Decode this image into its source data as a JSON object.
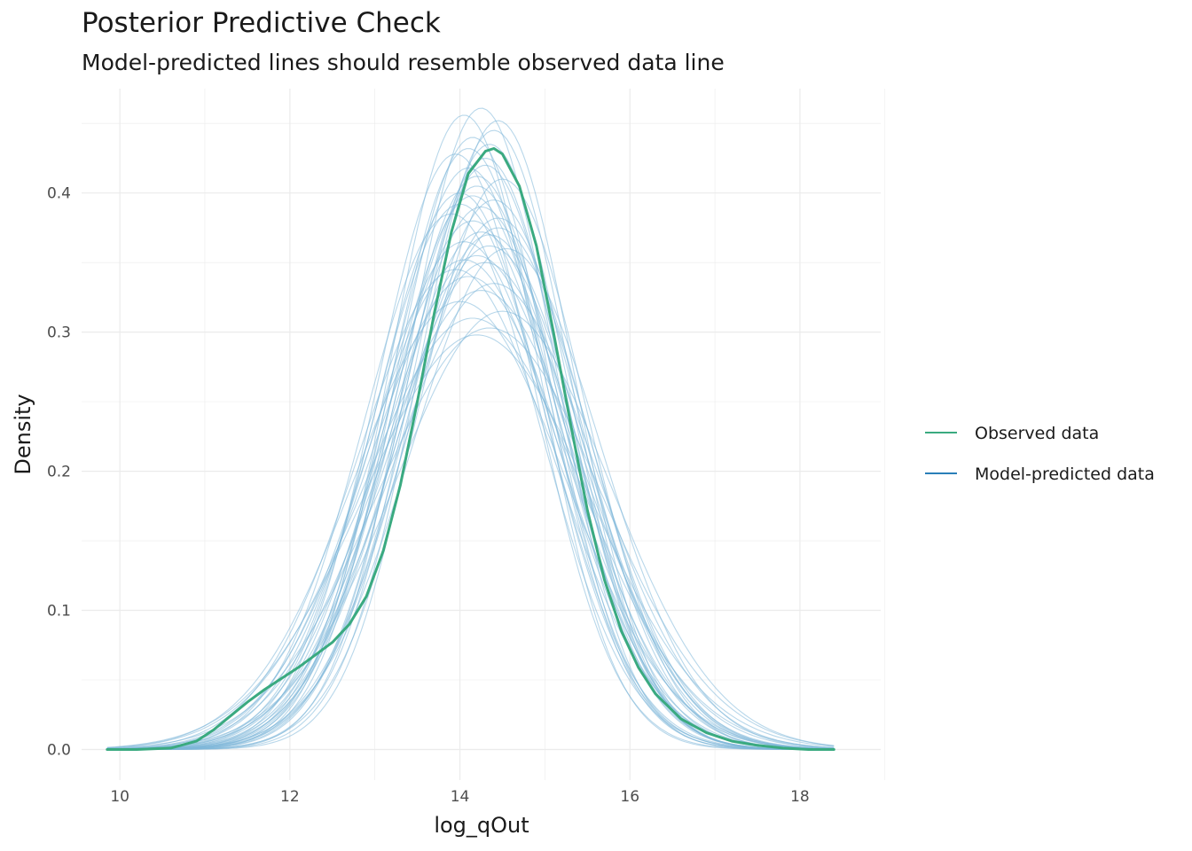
{
  "chart_data": {
    "type": "line",
    "title": "Posterior Predictive Check",
    "subtitle": "Model-predicted lines should resemble observed data line",
    "xlabel": "log_qOut",
    "ylabel": "Density",
    "xlim": [
      9.55,
      18.95
    ],
    "ylim": [
      -0.022,
      0.475
    ],
    "x_ticks": [
      10,
      12,
      14,
      16,
      18
    ],
    "x_tick_labels": [
      "10",
      "12",
      "14",
      "16",
      "18"
    ],
    "y_ticks": [
      0.0,
      0.1,
      0.2,
      0.3,
      0.4
    ],
    "y_tick_labels": [
      "0.0",
      "0.1",
      "0.2",
      "0.3",
      "0.4"
    ],
    "grid": true,
    "legend_position": "right",
    "colors": {
      "observed": "#3aaa80",
      "predicted": "#2a7fb8",
      "predicted_line": "#7eb6d9",
      "grid": "#ebebeb"
    },
    "series": [
      {
        "name": "Observed data",
        "x": [
          9.85,
          10.2,
          10.6,
          10.9,
          11.1,
          11.3,
          11.5,
          11.7,
          11.9,
          12.1,
          12.3,
          12.5,
          12.7,
          12.9,
          13.1,
          13.3,
          13.5,
          13.7,
          13.9,
          14.1,
          14.3,
          14.4,
          14.5,
          14.7,
          14.9,
          15.1,
          15.3,
          15.5,
          15.7,
          15.9,
          16.1,
          16.3,
          16.6,
          16.9,
          17.2,
          17.5,
          17.8,
          18.1,
          18.4
        ],
        "y": [
          0.0,
          0.0,
          0.001,
          0.006,
          0.014,
          0.024,
          0.034,
          0.043,
          0.051,
          0.059,
          0.068,
          0.077,
          0.09,
          0.11,
          0.143,
          0.19,
          0.25,
          0.314,
          0.372,
          0.414,
          0.43,
          0.432,
          0.428,
          0.405,
          0.362,
          0.3,
          0.235,
          0.172,
          0.122,
          0.085,
          0.059,
          0.04,
          0.022,
          0.012,
          0.006,
          0.003,
          0.001,
          0.0,
          0.0
        ]
      },
      {
        "name": "Model-predicted data",
        "draws": [
          {
            "mu": 14.05,
            "peak": 0.456
          },
          {
            "mu": 14.25,
            "peak": 0.461
          },
          {
            "mu": 14.45,
            "peak": 0.452
          },
          {
            "mu": 14.15,
            "peak": 0.44
          },
          {
            "mu": 14.35,
            "peak": 0.435
          },
          {
            "mu": 13.95,
            "peak": 0.428
          },
          {
            "mu": 14.3,
            "peak": 0.425
          },
          {
            "mu": 14.1,
            "peak": 0.418
          },
          {
            "mu": 14.5,
            "peak": 0.41
          },
          {
            "mu": 14.2,
            "peak": 0.405
          },
          {
            "mu": 14.0,
            "peak": 0.4
          },
          {
            "mu": 14.4,
            "peak": 0.395
          },
          {
            "mu": 14.25,
            "peak": 0.39
          },
          {
            "mu": 13.9,
            "peak": 0.385
          },
          {
            "mu": 14.15,
            "peak": 0.38
          },
          {
            "mu": 14.45,
            "peak": 0.375
          },
          {
            "mu": 14.35,
            "peak": 0.37
          },
          {
            "mu": 14.05,
            "peak": 0.365
          },
          {
            "mu": 14.55,
            "peak": 0.36
          },
          {
            "mu": 14.2,
            "peak": 0.355
          },
          {
            "mu": 14.3,
            "peak": 0.35
          },
          {
            "mu": 13.95,
            "peak": 0.345
          },
          {
            "mu": 14.1,
            "peak": 0.34
          },
          {
            "mu": 14.4,
            "peak": 0.335
          },
          {
            "mu": 14.25,
            "peak": 0.33
          },
          {
            "mu": 14.0,
            "peak": 0.322
          },
          {
            "mu": 14.5,
            "peak": 0.315
          },
          {
            "mu": 14.15,
            "peak": 0.31
          },
          {
            "mu": 14.35,
            "peak": 0.303
          },
          {
            "mu": 14.2,
            "peak": 0.298
          },
          {
            "mu": 14.3,
            "peak": 0.42
          },
          {
            "mu": 14.1,
            "peak": 0.432
          },
          {
            "mu": 14.4,
            "peak": 0.445
          },
          {
            "mu": 14.2,
            "peak": 0.412
          },
          {
            "mu": 14.0,
            "peak": 0.392
          },
          {
            "mu": 14.45,
            "peak": 0.382
          },
          {
            "mu": 14.25,
            "peak": 0.372
          },
          {
            "mu": 14.35,
            "peak": 0.362
          },
          {
            "mu": 14.05,
            "peak": 0.352
          },
          {
            "mu": 14.15,
            "peak": 0.398
          }
        ]
      }
    ]
  }
}
